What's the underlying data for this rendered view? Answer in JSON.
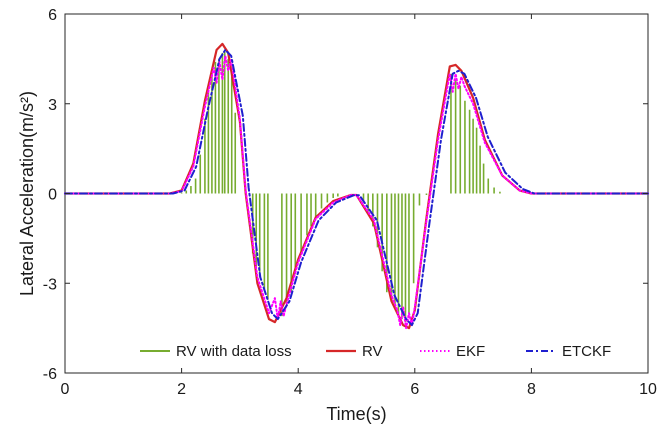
{
  "chart_data": {
    "type": "line",
    "xlabel": "Time(s)",
    "ylabel": "Lateral Acceleration(m/s²)",
    "xlim": [
      0,
      10
    ],
    "ylim": [
      -6,
      6
    ],
    "xticks": [
      "0",
      "2",
      "4",
      "6",
      "8",
      "10"
    ],
    "yticks": [
      "-6",
      "-3",
      "0",
      "3",
      "6"
    ],
    "grid": false,
    "legend_position": "bottom-center",
    "series": [
      {
        "name": "RV with data loss",
        "color": "#77ac30",
        "style": "stem",
        "x": [
          2.0,
          2.08,
          2.16,
          2.24,
          2.32,
          2.4,
          2.46,
          2.52,
          2.58,
          2.64,
          2.7,
          2.74,
          2.8,
          2.86,
          2.92,
          3.22,
          3.28,
          3.34,
          3.42,
          3.48,
          3.72,
          3.8,
          3.88,
          3.95,
          4.05,
          4.15,
          4.22,
          4.3,
          4.4,
          4.5,
          4.6,
          4.68,
          5.12,
          5.2,
          5.28,
          5.36,
          5.44,
          5.52,
          5.6,
          5.66,
          5.72,
          5.78,
          5.84,
          5.9,
          5.98,
          6.08,
          6.2,
          6.62,
          6.7,
          6.78,
          6.86,
          6.94,
          7.0,
          7.06,
          7.12,
          7.18,
          7.26,
          7.36,
          7.46
        ],
        "values": [
          0.03,
          0.1,
          0.25,
          0.5,
          1.3,
          2.5,
          3.4,
          4.1,
          4.4,
          4.5,
          4.7,
          4.75,
          4.5,
          4.0,
          2.7,
          -2.0,
          -2.5,
          -2.8,
          -3.2,
          -3.55,
          -4.1,
          -3.7,
          -3.3,
          -2.7,
          -2.0,
          -1.4,
          -1.1,
          -0.8,
          -0.5,
          -0.3,
          -0.15,
          -0.1,
          -0.3,
          -0.6,
          -1.1,
          -1.8,
          -2.6,
          -3.3,
          -3.6,
          -3.8,
          -4.1,
          -4.2,
          -4.3,
          -4.0,
          -3.0,
          -0.4,
          -0.05,
          4.0,
          3.8,
          3.6,
          3.1,
          2.8,
          2.5,
          2.2,
          1.6,
          1.0,
          0.5,
          0.2,
          0.06
        ]
      },
      {
        "name": "RV",
        "color": "#d62728",
        "style": "solid",
        "x": [
          0,
          1.8,
          2.0,
          2.2,
          2.4,
          2.6,
          2.7,
          2.8,
          3.0,
          3.1,
          3.3,
          3.5,
          3.6,
          3.8,
          4.0,
          4.3,
          4.6,
          4.9,
          5.0,
          5.3,
          5.6,
          5.8,
          5.9,
          6.0,
          6.2,
          6.4,
          6.6,
          6.7,
          6.8,
          7.0,
          7.2,
          7.5,
          7.8,
          8.0,
          10
        ],
        "values": [
          0,
          0,
          0.1,
          1.0,
          3.1,
          4.8,
          5.0,
          4.7,
          2.4,
          0,
          -3.0,
          -4.2,
          -4.3,
          -3.5,
          -2.2,
          -0.8,
          -0.25,
          -0.05,
          -0.05,
          -1.0,
          -3.6,
          -4.4,
          -4.5,
          -3.9,
          -0.8,
          2.0,
          4.25,
          4.3,
          4.1,
          3.2,
          1.8,
          0.6,
          0.1,
          0,
          0
        ]
      },
      {
        "name": "EKF",
        "color": "#ff00ff",
        "style": "dotted",
        "x": [
          0,
          1.8,
          2.0,
          2.2,
          2.4,
          2.55,
          2.6,
          2.65,
          2.7,
          2.75,
          2.8,
          2.85,
          3.0,
          3.1,
          3.3,
          3.5,
          3.6,
          3.65,
          3.7,
          3.75,
          3.8,
          4.0,
          4.3,
          4.6,
          4.9,
          5.0,
          5.3,
          5.6,
          5.7,
          5.75,
          5.8,
          5.85,
          5.9,
          5.95,
          6.0,
          6.2,
          6.4,
          6.6,
          6.65,
          6.7,
          6.75,
          6.8,
          6.85,
          7.0,
          7.2,
          7.5,
          7.8,
          8.0,
          10
        ],
        "values": [
          0,
          0,
          0.08,
          0.9,
          2.9,
          4.2,
          3.7,
          4.4,
          3.8,
          4.6,
          4.1,
          4.5,
          2.5,
          0.1,
          -2.8,
          -4.0,
          -3.5,
          -4.2,
          -3.6,
          -4.1,
          -3.7,
          -2.3,
          -0.85,
          -0.3,
          -0.05,
          -0.05,
          -0.9,
          -3.4,
          -3.9,
          -4.4,
          -3.8,
          -4.5,
          -4.0,
          -4.4,
          -3.8,
          -0.9,
          1.8,
          4.0,
          3.4,
          4.0,
          3.5,
          3.9,
          3.6,
          3.0,
          1.7,
          0.6,
          0.1,
          0,
          0
        ]
      },
      {
        "name": "ETCKF",
        "color": "#1f1fcf",
        "style": "dashdot",
        "x": [
          0,
          1.85,
          2.05,
          2.25,
          2.45,
          2.65,
          2.75,
          2.85,
          3.05,
          3.15,
          3.35,
          3.55,
          3.65,
          3.85,
          4.05,
          4.35,
          4.65,
          4.95,
          5.05,
          5.35,
          5.65,
          5.85,
          5.95,
          6.05,
          6.25,
          6.45,
          6.65,
          6.75,
          6.85,
          7.05,
          7.25,
          7.55,
          7.85,
          8.05,
          10
        ],
        "values": [
          0,
          0,
          0.1,
          0.9,
          2.8,
          4.5,
          4.8,
          4.6,
          2.6,
          0.2,
          -2.8,
          -4.0,
          -4.2,
          -3.6,
          -2.3,
          -0.9,
          -0.3,
          -0.06,
          -0.06,
          -0.9,
          -3.4,
          -4.2,
          -4.4,
          -4.0,
          -1.0,
          1.8,
          4.0,
          4.1,
          4.0,
          3.2,
          1.9,
          0.7,
          0.15,
          0,
          0
        ]
      }
    ]
  }
}
